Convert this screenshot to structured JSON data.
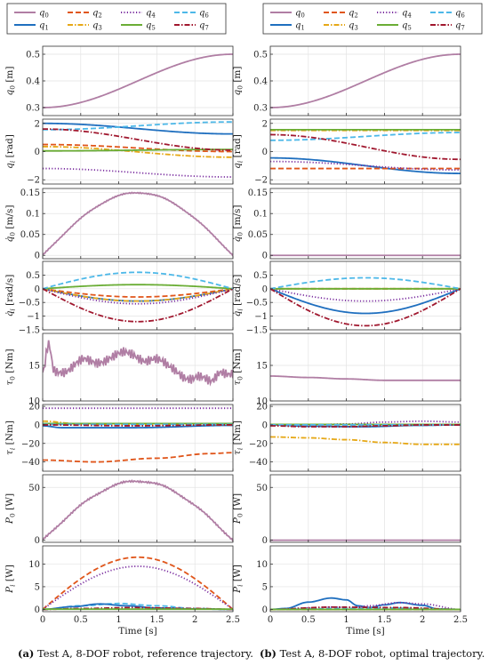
{
  "legend": [
    {
      "label": "q0",
      "sub": "0",
      "color": "#b07ea4",
      "dash": "solid"
    },
    {
      "label": "q1",
      "sub": "1",
      "color": "#1f6fbf",
      "dash": "solid"
    },
    {
      "label": "q2",
      "sub": "2",
      "color": "#e0561b",
      "dash": "long"
    },
    {
      "label": "q3",
      "sub": "3",
      "color": "#e6a817",
      "dash": "dashdot"
    },
    {
      "label": "q4",
      "sub": "4",
      "color": "#7b2fa0",
      "dash": "dot"
    },
    {
      "label": "q5",
      "sub": "5",
      "color": "#6aad35",
      "dash": "solid"
    },
    {
      "label": "q6",
      "sub": "6",
      "color": "#4db8e8",
      "dash": "long"
    },
    {
      "label": "q7",
      "sub": "7",
      "color": "#a0172e",
      "dash": "dashdot"
    }
  ],
  "captions": {
    "left_bold": "(a)",
    "left_text": " Test A, 8-DOF robot, reference trajectory.",
    "right_bold": "(b)",
    "right_text": " Test A, 8-DOF robot, optimal trajectory."
  },
  "chart_data": [
    {
      "type": "line",
      "column": "reference",
      "row": 0,
      "ylabel": "q0 [m]",
      "ylabel_sym": "q",
      "ylabel_sub": "0",
      "ylabel_dot": false,
      "ylabel_unit": " [m]",
      "ylim": [
        0.27,
        0.53
      ],
      "yticks": [
        0.3,
        0.4,
        0.5
      ],
      "yticklabels": [
        "0.3",
        "0.4",
        "0.5"
      ],
      "xlim": [
        0,
        2.5
      ],
      "grid": true,
      "series": [
        {
          "ref": 0,
          "shape": "ramp",
          "start": 0.3,
          "end": 0.5
        }
      ]
    },
    {
      "type": "line",
      "column": "reference",
      "row": 1,
      "ylabel": "qi [rad]",
      "ylabel_sym": "q",
      "ylabel_sub": "i",
      "ylabel_dot": false,
      "ylabel_unit": " [rad]",
      "ylim": [
        -2.3,
        2.3
      ],
      "yticks": [
        -2,
        0,
        2
      ],
      "yticklabels": [
        "−2",
        "0",
        "2"
      ],
      "xlim": [
        0,
        2.5
      ],
      "grid": true,
      "series": [
        {
          "ref": 1,
          "shape": "ramp",
          "start": 2.0,
          "end": 1.25
        },
        {
          "ref": 2,
          "shape": "ramp",
          "start": 0.5,
          "end": 0.0
        },
        {
          "ref": 3,
          "shape": "ramp",
          "start": 0.35,
          "end": -0.4
        },
        {
          "ref": 4,
          "shape": "ramp",
          "start": -1.2,
          "end": -1.8
        },
        {
          "ref": 5,
          "shape": "ramp",
          "start": 0.05,
          "end": 0.15
        },
        {
          "ref": 6,
          "shape": "ramp",
          "start": 1.55,
          "end": 2.1
        },
        {
          "ref": 7,
          "shape": "ramp",
          "start": 1.6,
          "end": 0.1
        }
      ]
    },
    {
      "type": "line",
      "column": "reference",
      "row": 2,
      "ylabel": "q̇0 [m/s]",
      "ylabel_sym": "q",
      "ylabel_sub": "0",
      "ylabel_dot": true,
      "ylabel_unit": " [m/s]",
      "ylim": [
        -0.008,
        0.16
      ],
      "yticks": [
        0,
        0.05,
        0.1,
        0.15
      ],
      "yticklabels": [
        "0",
        "0.05",
        "0.1",
        "0.15"
      ],
      "xlim": [
        0,
        2.5
      ],
      "grid": true,
      "series": [
        {
          "ref": 0,
          "shape": "bump",
          "peak": 0.15,
          "noise": 0.002
        }
      ]
    },
    {
      "type": "line",
      "column": "reference",
      "row": 3,
      "ylabel": "q̇i [rad/s]",
      "ylabel_sym": "q",
      "ylabel_sub": "i",
      "ylabel_dot": true,
      "ylabel_unit": " [rad/s]",
      "ylim": [
        -1.5,
        1.0
      ],
      "yticks": [
        -1.5,
        -1,
        -0.5,
        0,
        0.5
      ],
      "yticklabels": [
        "−1.5",
        "−1",
        "−0.5",
        "0",
        "0.5"
      ],
      "xlim": [
        0,
        2.5
      ],
      "grid": true,
      "series": [
        {
          "ref": 1,
          "shape": "bump",
          "peak": -0.45
        },
        {
          "ref": 2,
          "shape": "bump",
          "peak": -0.3
        },
        {
          "ref": 3,
          "shape": "bump",
          "peak": -0.45
        },
        {
          "ref": 4,
          "shape": "bump",
          "peak": -0.55
        },
        {
          "ref": 5,
          "shape": "bump",
          "peak": 0.15
        },
        {
          "ref": 6,
          "shape": "bump",
          "peak": 0.6
        },
        {
          "ref": 7,
          "shape": "bump",
          "peak": -1.2
        }
      ]
    },
    {
      "type": "line",
      "column": "reference",
      "row": 4,
      "ylabel": "τ0 [Nm]",
      "ylabel_sym": "τ",
      "ylabel_sub": "0",
      "ylabel_dot": false,
      "ylabel_unit": " [Nm]",
      "ylim": [
        10,
        19.5
      ],
      "yticks": [
        10,
        15
      ],
      "yticklabels": [
        "10",
        "15"
      ],
      "xlim": [
        0,
        2.5
      ],
      "grid": true,
      "series": [
        {
          "ref": 0,
          "shape": "pts",
          "noise": 1.2,
          "x": [
            0,
            0.08,
            0.15,
            0.3,
            0.6,
            0.9,
            1.2,
            1.4,
            1.7,
            2.0,
            2.2,
            2.35,
            2.5
          ],
          "y": [
            13.5,
            17.8,
            14.5,
            14.5,
            15.5,
            16.2,
            16.5,
            16.0,
            14.5,
            13.2,
            12.5,
            14.5,
            14.0
          ]
        }
      ]
    },
    {
      "type": "line",
      "column": "reference",
      "row": 5,
      "ylabel": "τi [Nm]",
      "ylabel_sym": "τ",
      "ylabel_sub": "i",
      "ylabel_dot": false,
      "ylabel_unit": " [Nm]",
      "ylim": [
        -50,
        22
      ],
      "yticks": [
        -40,
        -20,
        0,
        20
      ],
      "yticklabels": [
        "−40",
        "−20",
        "0",
        "20"
      ],
      "xlim": [
        0,
        2.5
      ],
      "grid": true,
      "series": [
        {
          "ref": 1,
          "shape": "pts",
          "x": [
            0,
            0.25,
            1.2,
            2.5
          ],
          "y": [
            -1,
            -3,
            -3,
            -0.5
          ]
        },
        {
          "ref": 2,
          "shape": "pts",
          "x": [
            0,
            0.7,
            1.5,
            2.2,
            2.5
          ],
          "y": [
            -38,
            -40,
            -36,
            -31,
            -30
          ]
        },
        {
          "ref": 3,
          "shape": "pts",
          "x": [
            0,
            0.5,
            1.5,
            2.5
          ],
          "y": [
            4,
            1,
            0,
            0
          ]
        },
        {
          "ref": 4,
          "shape": "const",
          "value": 18
        },
        {
          "ref": 5,
          "shape": "const",
          "value": 1.5
        },
        {
          "ref": 6,
          "shape": "const",
          "value": 0.5
        },
        {
          "ref": 7,
          "shape": "pts",
          "x": [
            0,
            1.2,
            2.5
          ],
          "y": [
            0,
            -1,
            0
          ]
        }
      ]
    },
    {
      "type": "line",
      "column": "reference",
      "row": 6,
      "ylabel": "P0 [W]",
      "ylabel_sym": "P",
      "ylabel_sub": "0",
      "ylabel_dot": false,
      "ylabel_unit": " [W]",
      "ylim": [
        -2,
        62
      ],
      "yticks": [
        0,
        50
      ],
      "yticklabels": [
        "0",
        "50"
      ],
      "xlim": [
        0,
        2.5
      ],
      "grid": true,
      "series": [
        {
          "ref": 0,
          "shape": "bump",
          "peak": 56,
          "noise": 1.3
        }
      ]
    },
    {
      "type": "line",
      "column": "reference",
      "row": 7,
      "ylabel": "Pi [W]",
      "ylabel_sym": "P",
      "ylabel_sub": "i",
      "ylabel_dot": false,
      "ylabel_unit": " [W]",
      "ylim": [
        -0.5,
        14
      ],
      "yticks": [
        0,
        5,
        10
      ],
      "yticklabels": [
        "0",
        "5",
        "10"
      ],
      "xlim": [
        0,
        2.5
      ],
      "grid": true,
      "xticks": [
        0,
        0.5,
        1,
        1.5,
        2,
        2.5
      ],
      "xticklabels": [
        "0",
        "0.5",
        "1",
        "1.5",
        "2",
        "2.5"
      ],
      "xlabel": "Time [s]",
      "series": [
        {
          "ref": 2,
          "shape": "bump",
          "peak": 11.5
        },
        {
          "ref": 4,
          "shape": "bump",
          "peak": 9.5
        },
        {
          "ref": 6,
          "shape": "pts",
          "x": [
            0,
            0.5,
            1.0,
            1.5,
            2.0,
            2.5
          ],
          "y": [
            0,
            0.8,
            1.3,
            0.8,
            0.2,
            0
          ]
        },
        {
          "ref": 1,
          "shape": "pts",
          "x": [
            0,
            0.4,
            0.75,
            1.1,
            1.5,
            2.0,
            2.5
          ],
          "y": [
            0,
            0.6,
            1.2,
            0.8,
            0.3,
            0.1,
            0
          ]
        },
        {
          "ref": 7,
          "shape": "pts",
          "x": [
            0,
            0.5,
            1.2,
            2.0,
            2.5
          ],
          "y": [
            0,
            0.2,
            0.4,
            0.2,
            0
          ]
        },
        {
          "ref": 5,
          "shape": "const",
          "value": 0.05
        }
      ]
    },
    {
      "type": "line",
      "column": "optimal",
      "row": 0,
      "ylabel": "q0 [m]",
      "ylabel_sym": "q",
      "ylabel_sub": "0",
      "ylabel_dot": false,
      "ylabel_unit": " [m]",
      "ylim": [
        0.27,
        0.53
      ],
      "yticks": [
        0.3,
        0.4,
        0.5
      ],
      "yticklabels": [
        "0.3",
        "0.4",
        "0.5"
      ],
      "xlim": [
        0,
        2.5
      ],
      "grid": true,
      "series": [
        {
          "ref": 0,
          "shape": "ramp",
          "start": 0.3,
          "end": 0.5
        }
      ]
    },
    {
      "type": "line",
      "column": "optimal",
      "row": 1,
      "ylabel": "qi [rad]",
      "ylabel_sym": "q",
      "ylabel_sub": "i",
      "ylabel_dot": false,
      "ylabel_unit": " [rad]",
      "ylim": [
        -2.3,
        2.3
      ],
      "yticks": [
        -2,
        0,
        2
      ],
      "yticklabels": [
        "−2",
        "0",
        "2"
      ],
      "xlim": [
        0,
        2.5
      ],
      "grid": true,
      "series": [
        {
          "ref": 1,
          "shape": "ramp",
          "start": -0.45,
          "end": -1.55
        },
        {
          "ref": 2,
          "shape": "ramp",
          "start": -1.2,
          "end": -1.2
        },
        {
          "ref": 3,
          "shape": "const",
          "value": 1.5
        },
        {
          "ref": 4,
          "shape": "ramp",
          "start": -0.7,
          "end": -1.3
        },
        {
          "ref": 5,
          "shape": "const",
          "value": 1.55
        },
        {
          "ref": 6,
          "shape": "ramp",
          "start": 0.8,
          "end": 1.35
        },
        {
          "ref": 7,
          "shape": "ramp",
          "start": 1.2,
          "end": -0.55
        }
      ]
    },
    {
      "type": "line",
      "column": "optimal",
      "row": 2,
      "ylabel": "q̇0 [m/s]",
      "ylabel_sym": "q",
      "ylabel_sub": "0",
      "ylabel_dot": true,
      "ylabel_unit": " [m/s]",
      "ylim": [
        -0.008,
        0.16
      ],
      "yticks": [
        0,
        0.05,
        0.1,
        0.15
      ],
      "yticklabels": [
        "0",
        "0.05",
        "0.1",
        "0.15"
      ],
      "xlim": [
        0,
        2.5
      ],
      "grid": true,
      "series": [
        {
          "ref": 0,
          "shape": "const",
          "value": 0
        }
      ]
    },
    {
      "type": "line",
      "column": "optimal",
      "row": 3,
      "ylabel": "q̇i [rad/s]",
      "ylabel_sym": "q",
      "ylabel_sub": "i",
      "ylabel_dot": true,
      "ylabel_unit": " [rad/s]",
      "ylim": [
        -1.5,
        1.0
      ],
      "yticks": [
        -1.5,
        -1,
        -0.5,
        0,
        0.5
      ],
      "yticklabels": [
        "−1.5",
        "−1",
        "−0.5",
        "0",
        "0.5"
      ],
      "xlim": [
        0,
        2.5
      ],
      "grid": true,
      "series": [
        {
          "ref": 1,
          "shape": "bump",
          "peak": -0.9
        },
        {
          "ref": 2,
          "shape": "const",
          "value": 0
        },
        {
          "ref": 3,
          "shape": "const",
          "value": 0
        },
        {
          "ref": 4,
          "shape": "bump",
          "peak": -0.45
        },
        {
          "ref": 5,
          "shape": "const",
          "value": 0
        },
        {
          "ref": 6,
          "shape": "bump",
          "peak": 0.4
        },
        {
          "ref": 7,
          "shape": "bump",
          "peak": -1.35
        }
      ]
    },
    {
      "type": "line",
      "column": "optimal",
      "row": 4,
      "ylabel": "τ0 [Nm]",
      "ylabel_sym": "τ",
      "ylabel_sub": "0",
      "ylabel_dot": false,
      "ylabel_unit": " [Nm]",
      "ylim": [
        10,
        19.5
      ],
      "yticks": [
        10,
        15
      ],
      "yticklabels": [
        "10",
        "15"
      ],
      "xlim": [
        0,
        2.5
      ],
      "grid": true,
      "series": [
        {
          "ref": 0,
          "shape": "pts",
          "x": [
            0,
            0.5,
            1.0,
            1.5,
            2.0,
            2.5
          ],
          "y": [
            13.5,
            13.3,
            13.1,
            12.9,
            12.9,
            12.9
          ]
        }
      ]
    },
    {
      "type": "line",
      "column": "optimal",
      "row": 5,
      "ylabel": "τi [Nm]",
      "ylabel_sym": "τ",
      "ylabel_sub": "i",
      "ylabel_dot": false,
      "ylabel_unit": " [Nm]",
      "ylim": [
        -50,
        22
      ],
      "yticks": [
        -40,
        -20,
        0,
        20
      ],
      "yticklabels": [
        "−40",
        "−20",
        "0",
        "20"
      ],
      "xlim": [
        0,
        2.5
      ],
      "grid": true,
      "series": [
        {
          "ref": 1,
          "shape": "pts",
          "x": [
            0,
            0.5,
            1.2,
            2.0,
            2.5
          ],
          "y": [
            0,
            -1.5,
            -2,
            -0.5,
            0
          ]
        },
        {
          "ref": 2,
          "shape": "pts",
          "x": [
            0,
            1.2,
            2.5
          ],
          "y": [
            0,
            -0.5,
            0
          ]
        },
        {
          "ref": 3,
          "shape": "pts",
          "x": [
            0,
            0.5,
            1.0,
            1.5,
            2.0,
            2.5
          ],
          "y": [
            -13,
            -14,
            -16,
            -19,
            -21,
            -21
          ]
        },
        {
          "ref": 4,
          "shape": "pts",
          "x": [
            0,
            0.5,
            1.0,
            1.5,
            2.0,
            2.5
          ],
          "y": [
            0,
            0,
            1,
            3,
            4,
            3
          ]
        },
        {
          "ref": 5,
          "shape": "const",
          "value": 0.5
        },
        {
          "ref": 6,
          "shape": "const",
          "value": 0
        },
        {
          "ref": 7,
          "shape": "pts",
          "x": [
            0,
            0.5,
            1.0,
            1.5,
            2.0,
            2.5
          ],
          "y": [
            -1,
            -2,
            -2,
            -1,
            0,
            0
          ]
        }
      ]
    },
    {
      "type": "line",
      "column": "optimal",
      "row": 6,
      "ylabel": "P0 [W]",
      "ylabel_sym": "P",
      "ylabel_sub": "0",
      "ylabel_dot": false,
      "ylabel_unit": " [W]",
      "ylim": [
        -2,
        62
      ],
      "yticks": [
        0,
        50
      ],
      "yticklabels": [
        "0",
        "50"
      ],
      "xlim": [
        0,
        2.5
      ],
      "grid": true,
      "series": [
        {
          "ref": 0,
          "shape": "const",
          "value": 0
        }
      ]
    },
    {
      "type": "line",
      "column": "optimal",
      "row": 7,
      "ylabel": "Pi [W]",
      "ylabel_sym": "P",
      "ylabel_sub": "i",
      "ylabel_dot": false,
      "ylabel_unit": " [W]",
      "ylim": [
        -0.5,
        14
      ],
      "yticks": [
        0,
        5,
        10
      ],
      "yticklabels": [
        "0",
        "5",
        "10"
      ],
      "xlim": [
        0,
        2.5
      ],
      "grid": true,
      "xticks": [
        0,
        0.5,
        1,
        1.5,
        2,
        2.5
      ],
      "xticklabels": [
        "0",
        "0.5",
        "1",
        "1.5",
        "2",
        "2.5"
      ],
      "xlabel": "Time [s]",
      "series": [
        {
          "ref": 1,
          "shape": "pts",
          "x": [
            0,
            0.2,
            0.5,
            0.8,
            1.0,
            1.15,
            1.3,
            1.5,
            1.7,
            2.0,
            2.2,
            2.5
          ],
          "y": [
            0,
            0.2,
            1.6,
            2.5,
            2.1,
            0.8,
            0.4,
            1.0,
            1.5,
            0.9,
            0.1,
            0
          ]
        },
        {
          "ref": 4,
          "shape": "pts",
          "x": [
            0,
            0.5,
            0.8,
            1.1,
            1.3,
            1.7,
            2.0,
            2.5
          ],
          "y": [
            0,
            0.3,
            0.5,
            0.4,
            0.8,
            1.5,
            1.2,
            0
          ]
        },
        {
          "ref": 6,
          "shape": "pts",
          "x": [
            0,
            1.0,
            1.5,
            2.5
          ],
          "y": [
            0,
            0.2,
            0.3,
            0
          ]
        },
        {
          "ref": 7,
          "shape": "pts",
          "x": [
            0,
            0.8,
            1.7,
            2.5
          ],
          "y": [
            0,
            0.5,
            0.4,
            0
          ]
        },
        {
          "ref": 2,
          "shape": "const",
          "value": 0
        },
        {
          "ref": 3,
          "shape": "const",
          "value": 0
        },
        {
          "ref": 5,
          "shape": "const",
          "value": 0
        }
      ]
    }
  ]
}
